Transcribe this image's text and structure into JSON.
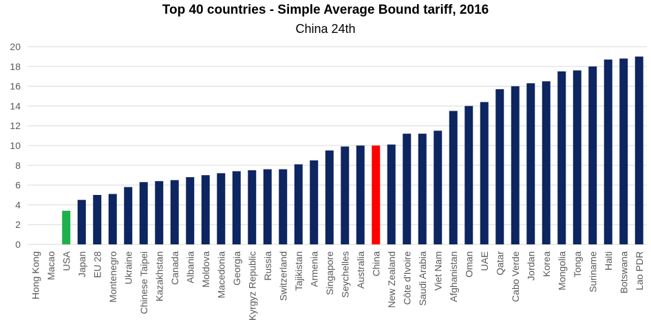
{
  "chart_data": {
    "type": "bar",
    "title": "Top 40 countries - Simple Average Bound tariff, 2016",
    "subtitle": "China 24th",
    "xlabel": "",
    "ylabel": "",
    "ylim": [
      0,
      20
    ],
    "yticks": [
      0,
      2,
      4,
      6,
      8,
      10,
      12,
      14,
      16,
      18,
      20
    ],
    "grid": true,
    "categories": [
      "Hong Kong",
      "Macao",
      "USA",
      "Japan",
      "EU 28",
      "Montenegro",
      "Ukraine",
      "Chinese Taipei",
      "Kazakhstan",
      "Canada",
      "Albania",
      "Moldova",
      "Macedonia",
      "Georgia",
      "Kyrgyz Republic",
      "Russia",
      "Switzerland",
      "Tajikistan",
      "Armenia",
      "Singapore",
      "Seychelles",
      "Australia",
      "China",
      "New Zealand",
      "Côte d'Ivoire",
      "Saudi Arabia",
      "Viet Nam",
      "Afghanistan",
      "Oman",
      "UAE",
      "Qatar",
      "Cabo Verde",
      "Jordan",
      "Korea",
      "Mongolia",
      "Tonga",
      "Suriname",
      "Haiti",
      "Botswana",
      "Lao PDR"
    ],
    "values": [
      0,
      0,
      3.4,
      4.5,
      5.0,
      5.1,
      5.8,
      6.3,
      6.4,
      6.5,
      6.8,
      7.0,
      7.2,
      7.4,
      7.5,
      7.6,
      7.6,
      8.1,
      8.5,
      9.5,
      9.9,
      10.0,
      10.0,
      10.1,
      11.2,
      11.2,
      11.5,
      13.5,
      14.0,
      14.4,
      15.7,
      16.0,
      16.3,
      16.5,
      17.5,
      17.6,
      18.0,
      18.7,
      18.8,
      19.0
    ],
    "colors": {
      "default": "#0D2560",
      "USA": "#1DB04B",
      "China": "#FF0000",
      "grid": "#D9D9D9"
    }
  }
}
